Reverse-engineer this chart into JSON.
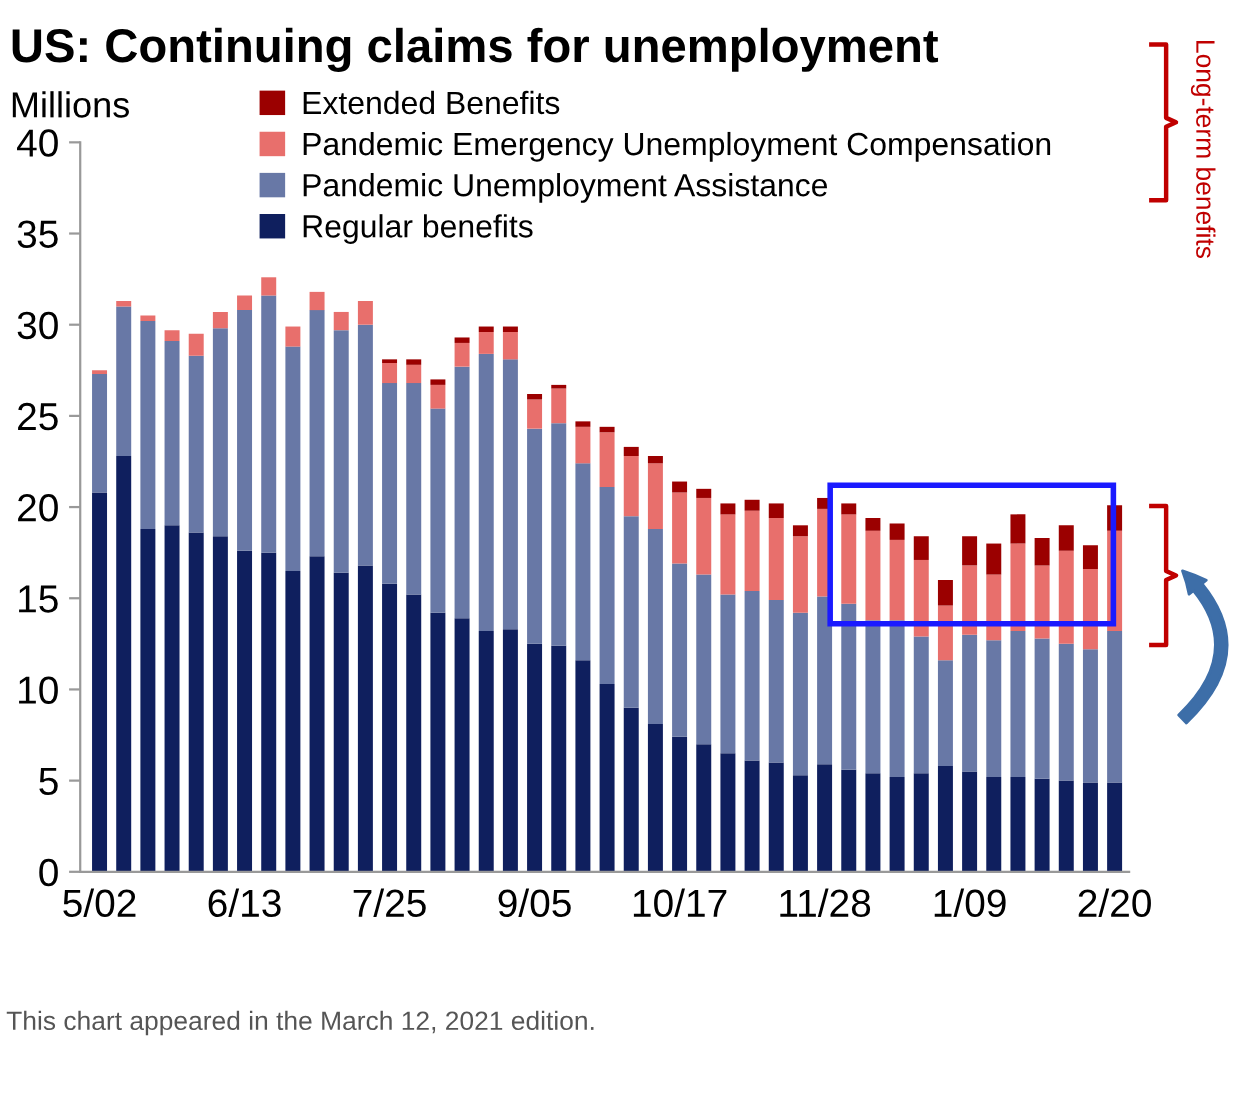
{
  "chart_data": {
    "type": "bar",
    "stacked": true,
    "title": "US: Continuing claims for unemployment",
    "ylabel": "Millions",
    "categories": [
      "5/02",
      null,
      null,
      null,
      null,
      null,
      "6/13",
      null,
      null,
      null,
      null,
      null,
      "7/25",
      null,
      null,
      null,
      null,
      null,
      "9/05",
      null,
      null,
      null,
      null,
      null,
      "10/17",
      null,
      null,
      null,
      null,
      null,
      "11/28",
      null,
      null,
      null,
      null,
      null,
      "1/09",
      null,
      null,
      null,
      null,
      null,
      "2/20"
    ],
    "series": [
      {
        "name": "Regular benefits",
        "color": "#0f1f5e",
        "values": [
          20.8,
          22.8,
          18.8,
          19.0,
          18.6,
          18.4,
          17.6,
          17.5,
          16.5,
          17.3,
          16.4,
          16.8,
          15.8,
          15.2,
          14.2,
          13.9,
          13.2,
          13.3,
          12.5,
          12.4,
          11.6,
          10.3,
          9.0,
          8.1,
          7.4,
          7.0,
          6.5,
          6.1,
          6.0,
          5.3,
          5.9,
          5.6,
          5.4,
          5.2,
          5.4,
          5.8,
          5.5,
          5.2,
          5.2,
          5.1,
          5.0,
          4.9,
          4.9
        ]
      },
      {
        "name": "Pandemic Unemployment Assistance",
        "color": "#6878a6",
        "values": [
          6.5,
          8.2,
          11.4,
          10.1,
          9.7,
          11.4,
          13.2,
          14.1,
          12.3,
          13.5,
          13.3,
          13.2,
          11.0,
          11.6,
          11.2,
          13.8,
          15.2,
          14.8,
          11.8,
          12.2,
          10.8,
          10.8,
          10.5,
          10.7,
          9.5,
          9.3,
          8.7,
          9.3,
          8.9,
          8.9,
          9.2,
          9.1,
          8.4,
          8.6,
          7.5,
          5.8,
          7.5,
          7.5,
          8.0,
          7.7,
          7.5,
          7.3,
          8.3
        ]
      },
      {
        "name": "Pandemic Emergency Unemployment Compensation",
        "color": "#e86f6c",
        "values": [
          0.2,
          0.3,
          0.3,
          0.6,
          1.2,
          0.9,
          0.8,
          1.0,
          1.1,
          1.0,
          1.0,
          1.3,
          1.1,
          1.0,
          1.3,
          1.3,
          1.2,
          1.5,
          1.6,
          1.9,
          2.0,
          3.0,
          3.3,
          3.6,
          3.9,
          4.2,
          4.4,
          4.4,
          4.5,
          4.2,
          4.8,
          4.9,
          4.9,
          4.4,
          4.2,
          3.0,
          3.8,
          3.6,
          4.8,
          4.0,
          5.1,
          4.4,
          5.5
        ]
      },
      {
        "name": "Extended Benefits",
        "color": "#9b0000",
        "values": [
          0.0,
          0.0,
          0.0,
          0.0,
          0.0,
          0.0,
          0.0,
          0.0,
          0.0,
          0.0,
          0.0,
          0.0,
          0.2,
          0.3,
          0.3,
          0.3,
          0.3,
          0.3,
          0.3,
          0.2,
          0.3,
          0.3,
          0.5,
          0.4,
          0.6,
          0.5,
          0.6,
          0.6,
          0.8,
          0.6,
          0.6,
          0.6,
          0.7,
          0.9,
          1.3,
          1.4,
          1.6,
          1.7,
          1.6,
          1.5,
          1.4,
          1.3,
          1.4
        ]
      }
    ],
    "ylim": [
      0,
      40
    ],
    "yticks": [
      0,
      5,
      10,
      15,
      20,
      25,
      30,
      35,
      40
    ],
    "grid": false,
    "legend": "top",
    "annotations": [
      "Long-term benefits",
      "This chart appeared in the March 12, 2021 edition."
    ]
  }
}
